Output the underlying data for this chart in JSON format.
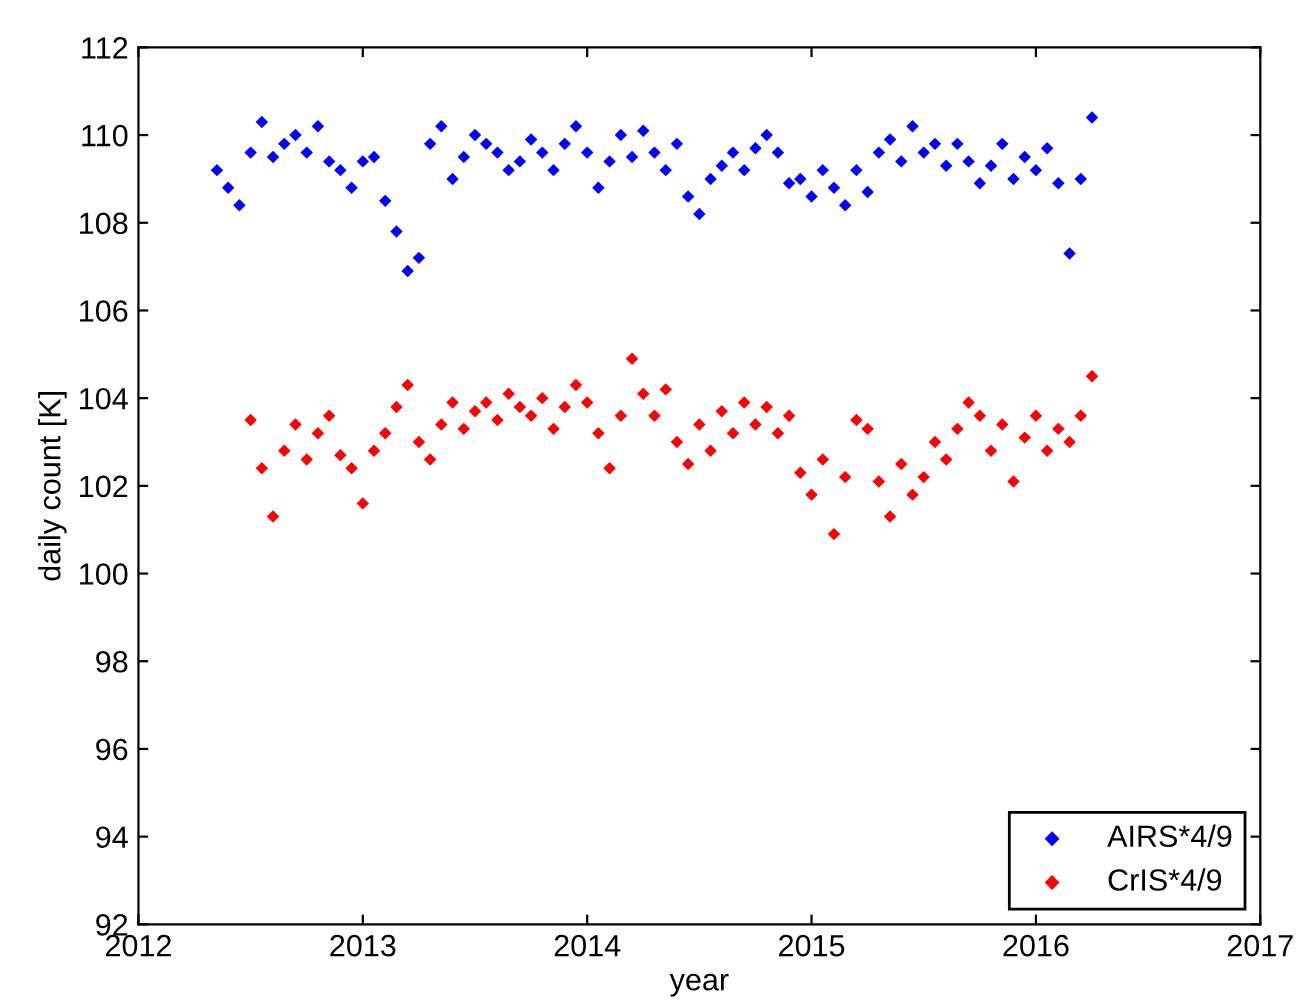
{
  "chart_data": {
    "type": "scatter",
    "xlabel": "year",
    "ylabel": "daily count [K]",
    "x": [
      2012.35,
      2012.4,
      2012.45,
      2012.5,
      2012.55,
      2012.6,
      2012.65,
      2012.7,
      2012.75,
      2012.8,
      2012.85,
      2012.9,
      2012.95,
      2013.0,
      2013.05,
      2013.1,
      2013.15,
      2013.2,
      2013.25,
      2013.3,
      2013.35,
      2013.4,
      2013.45,
      2013.5,
      2013.55,
      2013.6,
      2013.65,
      2013.7,
      2013.75,
      2013.8,
      2013.85,
      2013.9,
      2013.95,
      2014.0,
      2014.05,
      2014.1,
      2014.15,
      2014.2,
      2014.25,
      2014.3,
      2014.35,
      2014.4,
      2014.45,
      2014.5,
      2014.55,
      2014.6,
      2014.65,
      2014.7,
      2014.75,
      2014.8,
      2014.85,
      2014.9,
      2014.95,
      2015.0,
      2015.05,
      2015.1,
      2015.15,
      2015.2,
      2015.25,
      2015.3,
      2015.35,
      2015.4,
      2015.45,
      2015.5,
      2015.55,
      2015.6,
      2015.65,
      2015.7,
      2015.75,
      2015.8,
      2015.85,
      2015.9,
      2015.95,
      2016.0,
      2016.05,
      2016.1,
      2016.15,
      2016.2,
      2016.25
    ],
    "series": [
      {
        "name": "AIRS*4/9",
        "color": "#0000ff",
        "values": [
          109.2,
          108.8,
          108.4,
          109.6,
          110.3,
          109.5,
          109.8,
          110.0,
          109.6,
          110.2,
          109.4,
          109.2,
          108.8,
          109.4,
          109.5,
          108.5,
          107.8,
          106.9,
          107.2,
          109.8,
          110.2,
          109.0,
          109.5,
          110.0,
          109.8,
          109.6,
          109.2,
          109.4,
          109.9,
          109.6,
          109.2,
          109.8,
          110.2,
          109.6,
          108.8,
          109.4,
          110.0,
          109.5,
          110.1,
          109.6,
          109.2,
          109.8,
          108.6,
          108.2,
          109.0,
          109.3,
          109.6,
          109.2,
          109.7,
          110.0,
          109.6,
          108.9,
          109.0,
          108.6,
          109.2,
          108.8,
          108.4,
          109.2,
          108.7,
          109.6,
          109.9,
          109.4,
          110.2,
          109.6,
          109.8,
          109.3,
          109.8,
          109.4,
          108.9,
          109.3,
          109.8,
          109.0,
          109.5,
          109.2,
          109.7,
          108.9,
          107.3,
          109.0,
          110.4
        ]
      },
      {
        "name": "CrIS*4/9",
        "color": "#ff0000",
        "values": [
          null,
          null,
          null,
          103.5,
          102.4,
          101.3,
          102.8,
          103.4,
          102.6,
          103.2,
          103.6,
          102.7,
          102.4,
          101.6,
          102.8,
          103.2,
          103.8,
          104.3,
          103.0,
          102.6,
          103.4,
          103.9,
          103.3,
          103.7,
          103.9,
          103.5,
          104.1,
          103.8,
          103.6,
          104.0,
          103.3,
          103.8,
          104.3,
          103.9,
          103.2,
          102.4,
          103.6,
          104.9,
          104.1,
          103.6,
          104.2,
          103.0,
          102.5,
          103.4,
          102.8,
          103.7,
          103.2,
          103.9,
          103.4,
          103.8,
          103.2,
          103.6,
          102.3,
          101.8,
          102.6,
          100.9,
          102.2,
          103.5,
          103.3,
          102.1,
          101.3,
          102.5,
          101.8,
          102.2,
          103.0,
          102.6,
          103.3,
          103.9,
          103.6,
          102.8,
          103.4,
          102.1,
          103.1,
          103.6,
          102.8,
          103.3,
          103.0,
          103.6,
          104.5
        ]
      }
    ],
    "xlim": [
      2012,
      2017
    ],
    "xticks": [
      2012,
      2013,
      2014,
      2015,
      2016,
      2017
    ],
    "ylim": [
      92,
      112
    ],
    "yticks": [
      92,
      94,
      96,
      98,
      100,
      102,
      104,
      106,
      108,
      110,
      112
    ],
    "marker": "diamond",
    "legend": "bottom right"
  }
}
